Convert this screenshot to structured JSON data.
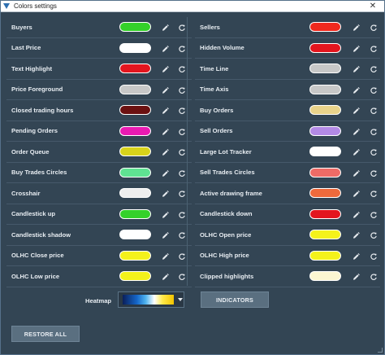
{
  "window": {
    "title": "Colors settings",
    "close_glyph": "✕"
  },
  "left_settings": [
    {
      "label": "Buyers",
      "color": "#34d12a"
    },
    {
      "label": "Last Price",
      "color": "#ffffff"
    },
    {
      "label": "Text Highlight",
      "color": "#e3151e"
    },
    {
      "label": "Price Foreground",
      "color": "#c7c7c7"
    },
    {
      "label": "Closed trading hours",
      "color": "#6b1111"
    },
    {
      "label": "Pending Orders",
      "color": "#e91bb2"
    },
    {
      "label": "Order Queue",
      "color": "#d8d31a"
    },
    {
      "label": "Buy Trades Circles",
      "color": "#5fe292"
    },
    {
      "label": "Crosshair",
      "color": "#eeeeee"
    },
    {
      "label": "Candlestick up",
      "color": "#34d12a"
    },
    {
      "label": "Candlestick shadow",
      "color": "#ffffff"
    },
    {
      "label": "OLHC Close price",
      "color": "#f4f21b"
    },
    {
      "label": "OLHC Low price",
      "color": "#f4f21b"
    }
  ],
  "right_settings": [
    {
      "label": "Sellers",
      "color": "#f0291e"
    },
    {
      "label": "Hidden Volume",
      "color": "#e3151e"
    },
    {
      "label": "Time Line",
      "color": "#c7c7c7"
    },
    {
      "label": "Time Axis",
      "color": "#c7c7c7"
    },
    {
      "label": "Buy Orders",
      "color": "#e9d38a"
    },
    {
      "label": "Sell Orders",
      "color": "#b38ae6"
    },
    {
      "label": "Large Lot Tracker",
      "color": "#ffffff"
    },
    {
      "label": "Sell Trades Circles",
      "color": "#ee6b66"
    },
    {
      "label": "Active drawing frame",
      "color": "#ee6a3c"
    },
    {
      "label": "Candlestick down",
      "color": "#e3151e"
    },
    {
      "label": "OLHC Open price",
      "color": "#f4f21b"
    },
    {
      "label": "OLHC High price",
      "color": "#f4f21b"
    },
    {
      "label": "Clipped highlights",
      "color": "#fbf6d2"
    }
  ],
  "heatmap": {
    "label": "Heatmap"
  },
  "buttons": {
    "indicators": "INDICATORS",
    "restore_all": "RESTORE ALL"
  },
  "icons": {
    "edit": "pencil-icon",
    "reset": "reset-icon"
  },
  "theme": {
    "background": "#334554",
    "row_border": "#46596a"
  }
}
